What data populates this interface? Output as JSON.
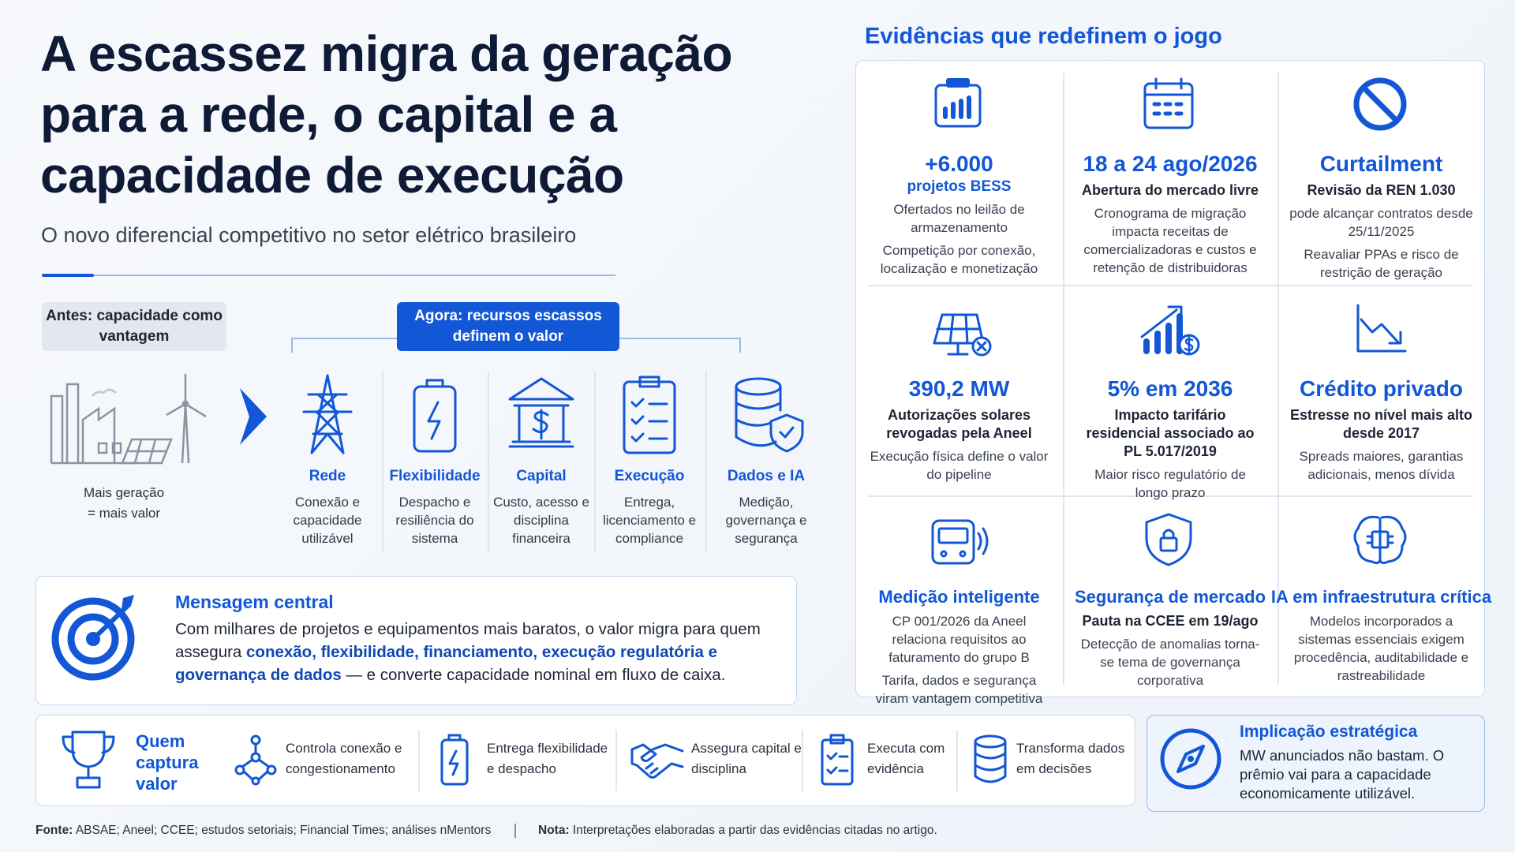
{
  "header": {
    "title": [
      "A escassez migra da geração",
      "para a rede, o capital e a",
      "capacidade de execução"
    ],
    "subtitle": "O novo diferencial competitivo no setor elétrico brasileiro"
  },
  "before": {
    "label": "Antes: capacidade como vantagem",
    "caption": [
      "Mais geração",
      "= mais valor"
    ]
  },
  "now": {
    "label": "Agora: recursos escassos definem o valor",
    "resources": [
      {
        "title": "Rede",
        "desc": "Conexão e capacidade utilizável"
      },
      {
        "title": "Flexibilidade",
        "desc": "Despacho e resiliência do sistema"
      },
      {
        "title": "Capital",
        "desc": "Custo, acesso e disciplina financeira"
      },
      {
        "title": "Execução",
        "desc": "Entrega, licenciamento e compliance"
      },
      {
        "title": "Dados e IA",
        "desc": "Medição, governança e segurança"
      }
    ]
  },
  "message": {
    "title": "Mensagem central",
    "before": "Com milhares de projetos e equipamentos mais baratos, o valor migra para quem assegura ",
    "highlight": "conexão, flexibilidade, financiamento, execução regulatória e governança de dados",
    "after": " — e converte capacidade nominal em fluxo de caixa."
  },
  "evidence": {
    "title": "Evidências que redefinem o jogo",
    "cards": [
      {
        "headline": "+6.000",
        "subtitle": "projetos BESS",
        "texts": [
          "Ofertados no leilão de armazenamento",
          "Competição por conexão, localização e monetização"
        ]
      },
      {
        "headline": "18 a 24 ago/2026",
        "strong": "Abertura do mercado livre",
        "texts": [
          "Cronograma de migração impacta receitas de comercializadoras e custos e retenção de distribuidoras"
        ]
      },
      {
        "headline": "Curtailment",
        "strong": "Revisão da REN 1.030",
        "texts": [
          "pode alcançar contratos desde 25/11/2025",
          "Reavaliar PPAs e risco de restrição de geração"
        ]
      },
      {
        "headline": "390,2 MW",
        "strong": "Autorizações solares revogadas pela Aneel",
        "texts": [
          "Execução física define o valor do pipeline"
        ]
      },
      {
        "headline": "5% em 2036",
        "strong": "Impacto tarifário residencial associado ao PL 5.017/2019",
        "texts": [
          "Maior risco regulatório de longo prazo"
        ]
      },
      {
        "headline": "Crédito privado",
        "strong": "Estresse no nível mais alto desde 2017",
        "texts": [
          "Spreads maiores, garantias adicionais, menos dívida"
        ]
      },
      {
        "headline": "Medição inteligente",
        "texts": [
          "CP 001/2026 da Aneel relaciona requisitos ao faturamento do grupo B",
          "Tarifa, dados e segurança viram vantagem competitiva"
        ]
      },
      {
        "headline": "Segurança de mercado",
        "strong": "Pauta na CCEE em 19/ago",
        "texts": [
          "Detecção de anomalias torna-se tema de governança corporativa"
        ]
      },
      {
        "headline": "IA em infraestrutura crítica",
        "texts": [
          "Modelos incorporados a sistemas essenciais exigem procedência, auditabilidade e rastreabilidade"
        ]
      }
    ]
  },
  "capture": {
    "title": "Quem captura valor",
    "items": [
      "Controla conexão e congestionamento",
      "Entrega flexibilidade e despacho",
      "Assegura capital e disciplina",
      "Executa com evidência",
      "Transforma dados em decisões"
    ]
  },
  "strategy": {
    "title": "Implicação estratégica",
    "text": "MW anunciados não bastam. O prêmio vai para a capacidade economicamente utilizável."
  },
  "footer": {
    "source_label": "Fonte:",
    "source": "ABSAE; Aneel; CCEE; estudos setoriais; Financial Times; análises nMentors",
    "note_label": "Nota:",
    "note": "Interpretações elaboradas a partir das evidências citadas no artigo."
  }
}
